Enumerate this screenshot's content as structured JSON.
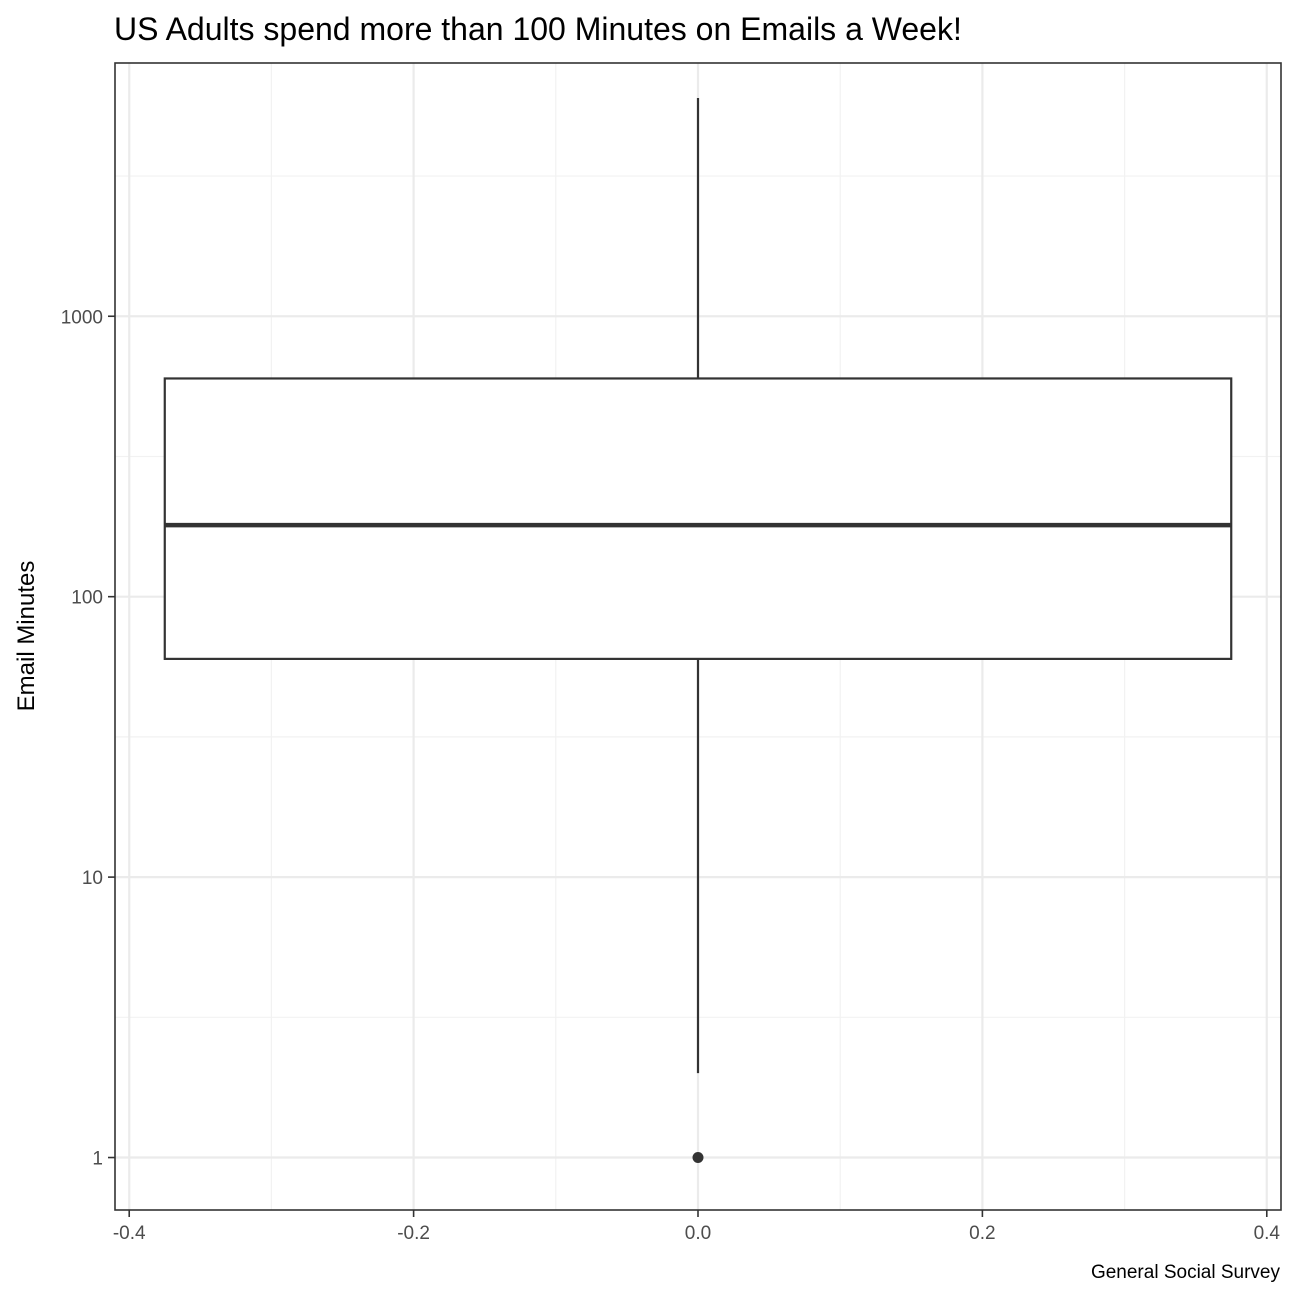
{
  "chart_data": {
    "type": "boxplot",
    "title": "US Adults spend more than 100 Minutes on Emails a Week!",
    "xlabel": "",
    "ylabel": "Email Minutes",
    "caption": "General Social Survey",
    "x_scale": "linear",
    "y_scale": "log10",
    "xlim": [
      -0.41,
      0.41
    ],
    "ylim": [
      0.65,
      8000
    ],
    "x_ticks": [
      -0.4,
      -0.2,
      0.0,
      0.2,
      0.4
    ],
    "x_tick_labels": [
      "-0.4",
      "-0.2",
      "0.0",
      "0.2",
      "0.4"
    ],
    "y_ticks": [
      1,
      10,
      100,
      1000
    ],
    "y_tick_labels": [
      "1",
      "10",
      "100",
      "1000"
    ],
    "grid": true,
    "box": {
      "x": 0,
      "width": 0.75,
      "whisker_low": 2,
      "q1": 60,
      "median": 180,
      "q3": 600,
      "whisker_high": 6000,
      "outliers": [
        1
      ]
    },
    "colors": {
      "box_fill": "#ffffff",
      "box_line": "#333333",
      "grid_major": "#ebebeb",
      "grid_minor": "#f2f2f2",
      "panel_border": "#333333"
    }
  }
}
